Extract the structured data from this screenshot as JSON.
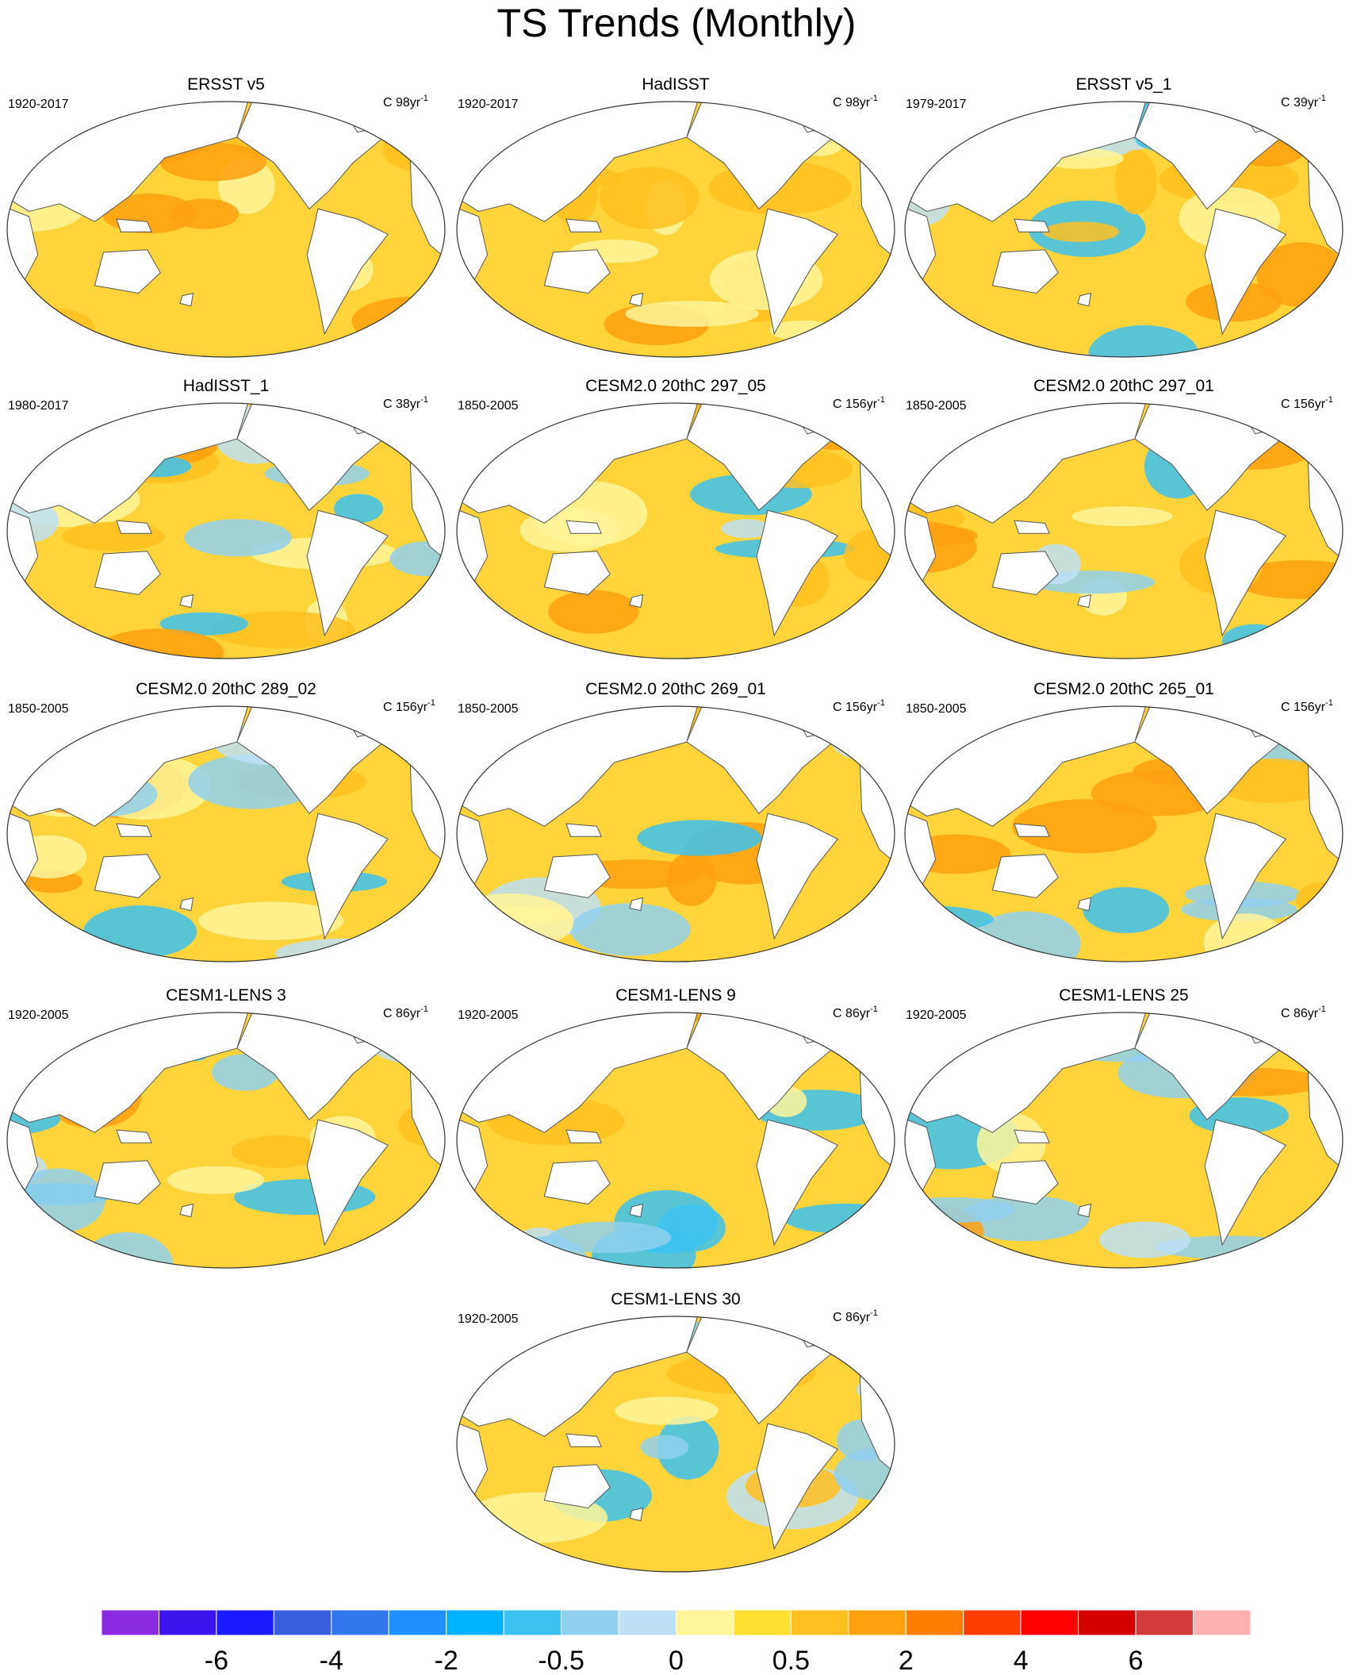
{
  "header": {
    "title": "TS Trends (Monthly)"
  },
  "panels": [
    {
      "title": "ERSST v5",
      "period": "1920-2017",
      "units": "C 98yr",
      "units_sup": "-1"
    },
    {
      "title": "HadISST",
      "period": "1920-2017",
      "units": "C 98yr",
      "units_sup": "-1"
    },
    {
      "title": "ERSST v5_1",
      "period": "1979-2017",
      "units": "C 39yr",
      "units_sup": "-1"
    },
    {
      "title": "HadISST_1",
      "period": "1980-2017",
      "units": "C 38yr",
      "units_sup": "-1"
    },
    {
      "title": "CESM2.0 20thC 297_05",
      "period": "1850-2005",
      "units": "C 156yr",
      "units_sup": "-1"
    },
    {
      "title": "CESM2.0 20thC 297_01",
      "period": "1850-2005",
      "units": "C 156yr",
      "units_sup": "-1"
    },
    {
      "title": "CESM2.0 20thC 289_02",
      "period": "1850-2005",
      "units": "C 156yr",
      "units_sup": "-1"
    },
    {
      "title": "CESM2.0 20thC 269_01",
      "period": "1850-2005",
      "units": "C 156yr",
      "units_sup": "-1"
    },
    {
      "title": "CESM2.0 20thC 265_01",
      "period": "1850-2005",
      "units": "C 156yr",
      "units_sup": "-1"
    },
    {
      "title": "CESM1-LENS 3",
      "period": "1920-2005",
      "units": "C 86yr",
      "units_sup": "-1"
    },
    {
      "title": "CESM1-LENS 9",
      "period": "1920-2005",
      "units": "C 86yr",
      "units_sup": "-1"
    },
    {
      "title": "CESM1-LENS 25",
      "period": "1920-2005",
      "units": "C 86yr",
      "units_sup": "-1"
    },
    {
      "title": "CESM1-LENS 30",
      "period": "1920-2005",
      "units": "C 86yr",
      "units_sup": "-1"
    }
  ],
  "colorbar": {
    "colors": [
      "#8a2be2",
      "#3b14f0",
      "#1a1aff",
      "#3a5ee0",
      "#3377ee",
      "#1e90ff",
      "#00b2ff",
      "#3cc2f0",
      "#8fd0ee",
      "#bde0f4",
      "#fff59a",
      "#ffe033",
      "#ffc020",
      "#ffa010",
      "#ff7d00",
      "#ff3c00",
      "#ff0000",
      "#d40000",
      "#d43a3a",
      "#ffb0b0"
    ],
    "labels": [
      "-6",
      "-4",
      "-2",
      "-0.5",
      "0",
      "0.5",
      "2",
      "4",
      "6"
    ]
  }
}
